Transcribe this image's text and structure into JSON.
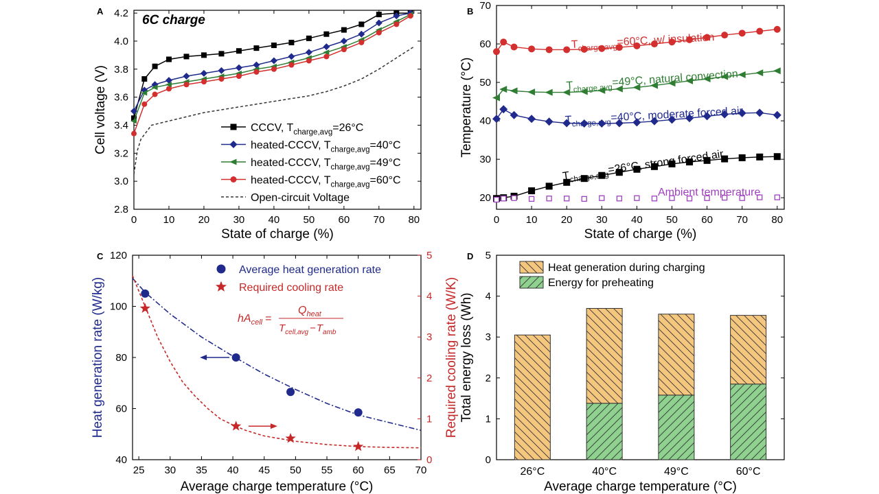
{
  "figure": {
    "description_none": ""
  },
  "chart_data": [
    {
      "panel": "A",
      "type": "line",
      "title": "6C charge",
      "xlabel": "State of charge (%)",
      "ylabel": "Cell voltage (V)",
      "xlim": [
        0,
        82
      ],
      "ylim": [
        2.8,
        4.22
      ],
      "xticks": [
        0,
        10,
        20,
        30,
        40,
        50,
        60,
        70,
        80
      ],
      "yticks": [
        2.8,
        3.0,
        3.2,
        3.4,
        3.6,
        3.8,
        4.0,
        4.2
      ],
      "xtick_labels": [
        "0",
        "10",
        "20",
        "30",
        "40",
        "50",
        "60",
        "70",
        "80"
      ],
      "ytick_labels": [
        "2.8",
        "3.0",
        "3.2",
        "3.4",
        "3.6",
        "3.8",
        "4.0",
        "4.2"
      ],
      "series": [
        {
          "name": "CCCV",
          "label_pre": "CCCV, T",
          "label_sub": "charge,avg",
          "label_post": "=26°C",
          "color": "#000000",
          "marker": "square",
          "x": [
            0,
            3,
            6,
            10,
            15,
            20,
            25,
            30,
            35,
            40,
            45,
            50,
            55,
            60,
            65,
            70,
            75,
            79
          ],
          "y": [
            3.45,
            3.73,
            3.82,
            3.87,
            3.89,
            3.9,
            3.91,
            3.93,
            3.95,
            3.97,
            3.99,
            4.02,
            4.05,
            4.08,
            4.12,
            4.19,
            4.2,
            4.2
          ]
        },
        {
          "name": "heated-CCCV 40",
          "label_pre": "heated-CCCV, T",
          "label_sub": "charge,avg",
          "label_post": "=40°C",
          "color": "#1f2a8c",
          "marker": "diamond",
          "x": [
            0,
            3,
            6,
            10,
            15,
            20,
            25,
            30,
            35,
            40,
            45,
            50,
            55,
            60,
            65,
            70,
            75,
            79
          ],
          "y": [
            3.5,
            3.65,
            3.69,
            3.72,
            3.75,
            3.77,
            3.79,
            3.81,
            3.83,
            3.86,
            3.89,
            3.92,
            3.96,
            4.0,
            4.05,
            4.13,
            4.18,
            4.2
          ]
        },
        {
          "name": "heated-CCCV 49",
          "label_pre": "heated-CCCV, T",
          "label_sub": "charge,avg",
          "label_post": "=49°C",
          "color": "#2e7d32",
          "marker": "triangle-left",
          "x": [
            0,
            3,
            6,
            10,
            15,
            20,
            25,
            30,
            35,
            40,
            45,
            50,
            55,
            60,
            65,
            70,
            75,
            79
          ],
          "y": [
            3.43,
            3.63,
            3.67,
            3.69,
            3.71,
            3.73,
            3.75,
            3.77,
            3.8,
            3.82,
            3.85,
            3.88,
            3.92,
            3.96,
            4.01,
            4.08,
            4.14,
            4.19
          ]
        },
        {
          "name": "heated-CCCV 60",
          "label_pre": "heated-CCCV, T",
          "label_sub": "charge,avg",
          "label_post": "=60°C",
          "color": "#d32f2f",
          "marker": "circle",
          "x": [
            0,
            3,
            6,
            10,
            15,
            20,
            25,
            30,
            35,
            40,
            45,
            50,
            55,
            60,
            65,
            70,
            75,
            79
          ],
          "y": [
            3.34,
            3.55,
            3.62,
            3.66,
            3.69,
            3.71,
            3.73,
            3.75,
            3.78,
            3.8,
            3.83,
            3.86,
            3.89,
            3.94,
            3.99,
            4.06,
            4.12,
            4.18
          ]
        },
        {
          "name": "Open-circuit Voltage",
          "label_pre": "Open-circuit Voltage",
          "label_sub": "",
          "label_post": "",
          "color": "#333333",
          "marker": "none",
          "dash": "4,3",
          "x": [
            0,
            1,
            2,
            5,
            10,
            15,
            20,
            25,
            30,
            35,
            40,
            45,
            50,
            55,
            60,
            65,
            70,
            75,
            80
          ],
          "y": [
            3.05,
            3.22,
            3.3,
            3.4,
            3.43,
            3.46,
            3.49,
            3.51,
            3.53,
            3.55,
            3.57,
            3.59,
            3.61,
            3.64,
            3.68,
            3.73,
            3.8,
            3.88,
            3.96
          ]
        }
      ]
    },
    {
      "panel": "B",
      "type": "line",
      "xlabel": "State of charge (%)",
      "ylabel": "Temperature (°C)",
      "xlim": [
        0,
        82
      ],
      "ylim": [
        17,
        70
      ],
      "xticks": [
        0,
        10,
        20,
        30,
        40,
        50,
        60,
        70,
        80
      ],
      "yticks": [
        20,
        30,
        40,
        50,
        60,
        70
      ],
      "xtick_labels": [
        "0",
        "10",
        "20",
        "30",
        "40",
        "50",
        "60",
        "70",
        "80"
      ],
      "ytick_labels": [
        "20",
        "30",
        "40",
        "50",
        "60",
        "70"
      ],
      "series": [
        {
          "name": "60C insulation",
          "label_pre": "T",
          "label_sub": "charge,avg",
          "label_post": "=60°C, w/ insulation",
          "color": "#d32f2f",
          "marker": "circle",
          "x": [
            0,
            2,
            5,
            10,
            15,
            20,
            25,
            30,
            35,
            40,
            45,
            50,
            55,
            60,
            65,
            70,
            75,
            80
          ],
          "y": [
            58,
            60.5,
            59.2,
            58.7,
            58.5,
            58.5,
            58.6,
            58.8,
            59.1,
            59.5,
            60,
            60.5,
            61.1,
            61.7,
            62.3,
            62.8,
            63.3,
            63.8
          ]
        },
        {
          "name": "49C natural convection",
          "label_pre": "T",
          "label_sub": "charge,avg",
          "label_post": "=49°C, natural convection",
          "color": "#2e7d32",
          "marker": "triangle-left",
          "x": [
            0,
            2,
            5,
            10,
            15,
            20,
            25,
            30,
            35,
            40,
            45,
            50,
            55,
            60,
            65,
            70,
            75,
            80
          ],
          "y": [
            46,
            48.2,
            47.8,
            47.5,
            47.4,
            47.4,
            47.6,
            47.9,
            48.3,
            48.7,
            49.2,
            49.8,
            50.4,
            50.9,
            51.5,
            52,
            52.5,
            53
          ]
        },
        {
          "name": "40C moderate forced air",
          "label_pre": "T",
          "label_sub": "charge,avg",
          "label_post": "=40°C, moderate forced air",
          "color": "#1f2a8c",
          "marker": "diamond",
          "x": [
            0,
            2,
            5,
            10,
            15,
            20,
            25,
            30,
            35,
            40,
            45,
            50,
            55,
            60,
            65,
            70,
            75,
            80
          ],
          "y": [
            40.5,
            43,
            41.5,
            40.5,
            39.8,
            39.4,
            39.3,
            39.3,
            39.4,
            39.6,
            39.9,
            40.3,
            40.7,
            41.2,
            41.7,
            42,
            42.1,
            41.5
          ]
        },
        {
          "name": "26C strong forced air",
          "label_pre": "T",
          "label_sub": "charge,avg",
          "label_post": "=26°C, strong forced air",
          "color": "#000000",
          "marker": "square",
          "x": [
            0,
            2,
            5,
            10,
            15,
            20,
            25,
            30,
            35,
            40,
            45,
            50,
            55,
            60,
            65,
            70,
            75,
            80
          ],
          "y": [
            19.8,
            20,
            20.4,
            21.8,
            23,
            24,
            25,
            25.8,
            26.6,
            27.4,
            28.1,
            28.8,
            29.3,
            29.7,
            30.1,
            30.4,
            30.6,
            30.7
          ]
        },
        {
          "name": "Ambient temperature",
          "label_pre": "Ambient temperature",
          "label_sub": "",
          "label_post": "",
          "color": "#a040c0",
          "marker": "open-square",
          "x": [
            0,
            2,
            5,
            10,
            15,
            20,
            25,
            30,
            35,
            40,
            45,
            50,
            55,
            60,
            65,
            70,
            75,
            80
          ],
          "y": [
            19.5,
            19.8,
            19.9,
            19.7,
            19.8,
            19.8,
            19.7,
            19.9,
            19.8,
            19.9,
            19.8,
            19.9,
            19.8,
            19.9,
            20,
            19.9,
            20.1,
            20.1
          ]
        }
      ]
    },
    {
      "panel": "C",
      "type": "scatter",
      "xlabel": "Average charge temperature (°C)",
      "ylabel_left": "Heat generation rate (W/kg)",
      "ylabel_right": "Required cooling rate (W/K)",
      "xlim": [
        24,
        70
      ],
      "ylim_left": [
        40,
        120
      ],
      "ylim_right": [
        0,
        5
      ],
      "xticks": [
        25,
        30,
        35,
        40,
        45,
        50,
        55,
        60,
        65,
        70
      ],
      "yticks_left": [
        40,
        60,
        80,
        100,
        120
      ],
      "yticks_right": [
        0,
        1,
        2,
        3,
        4,
        5
      ],
      "xtick_labels": [
        "25",
        "30",
        "35",
        "40",
        "45",
        "50",
        "55",
        "60",
        "65",
        "70"
      ],
      "ytick_labels_left": [
        "40",
        "60",
        "80",
        "100",
        "120"
      ],
      "ytick_labels_right": [
        "0",
        "1",
        "2",
        "3",
        "4",
        "5"
      ],
      "equation": {
        "lhs": "hA",
        "lhs_sub": "cell",
        "eq": "=",
        "num": "Q",
        "num_sub": "heat",
        "den_a": "T",
        "den_a_sub": "cell,avg",
        "den_minus": "−",
        "den_b": "T",
        "den_b_sub": "amb"
      },
      "series": [
        {
          "name": "Average heat generation rate",
          "axis": "left",
          "color": "#1f2a8c",
          "marker": "circle",
          "x": [
            26,
            40.5,
            49.2,
            60
          ],
          "y": [
            105,
            80,
            66.5,
            58.5
          ],
          "fit_x": [
            24,
            26,
            30,
            35,
            40,
            45,
            50,
            55,
            60,
            65,
            70
          ],
          "fit_y": [
            111,
            105.5,
            97,
            88,
            80.5,
            73.5,
            67.5,
            62,
            57.5,
            54.5,
            51.5
          ]
        },
        {
          "name": "Required cooling rate",
          "axis": "right",
          "color": "#c62828",
          "marker": "star",
          "x": [
            26,
            40.5,
            49.2,
            60
          ],
          "y": [
            3.7,
            0.82,
            0.52,
            0.32
          ],
          "fit_x": [
            24,
            26,
            28,
            30,
            32,
            34,
            36,
            38,
            40,
            42,
            45,
            50,
            55,
            60,
            65,
            70
          ],
          "fit_y": [
            4.5,
            3.75,
            3.0,
            2.4,
            1.9,
            1.55,
            1.25,
            1.0,
            0.85,
            0.72,
            0.58,
            0.45,
            0.37,
            0.32,
            0.3,
            0.29
          ]
        }
      ]
    },
    {
      "panel": "D",
      "type": "bar",
      "stacked": true,
      "xlabel": "Average charge temperature (°C)",
      "ylabel": "Total energy loss (Wh)",
      "ylim": [
        0,
        5
      ],
      "yticks": [
        0,
        1,
        2,
        3,
        4,
        5
      ],
      "ytick_labels": [
        "0",
        "1",
        "2",
        "3",
        "4",
        "5"
      ],
      "categories": [
        "26°C",
        "40°C",
        "49°C",
        "60°C"
      ],
      "series": [
        {
          "name": "Energy for preheating",
          "color": "#8fd18f",
          "hatch": "forward",
          "values": [
            0,
            1.38,
            1.58,
            1.85
          ]
        },
        {
          "name": "Heat generation during charging",
          "color": "#f5c77e",
          "hatch": "back",
          "values": [
            3.05,
            2.32,
            1.98,
            1.68
          ]
        }
      ],
      "legend_order": [
        "Heat generation during charging",
        "Energy for preheating"
      ]
    }
  ],
  "panel_labels": {
    "a": "A",
    "b": "B",
    "c": "C",
    "d": "D"
  },
  "degree_unit": "°C"
}
